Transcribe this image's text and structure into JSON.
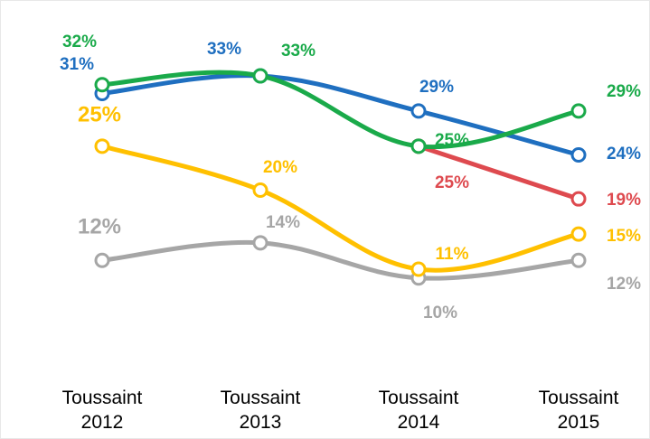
{
  "chart_data": {
    "type": "line",
    "categories": [
      "Toussaint 2012",
      "Toussaint 2013",
      "Toussaint 2014",
      "Toussaint 2015"
    ],
    "series": [
      {
        "name": "Gray",
        "color": "#a6a6a6",
        "values": [
          12,
          14,
          10,
          12
        ],
        "value_labels": [
          "12%",
          "14%",
          "10%",
          "12%"
        ]
      },
      {
        "name": "Yellow",
        "color": "#ffc000",
        "values": [
          25,
          20,
          11,
          15
        ],
        "value_labels": [
          "25%",
          "20%",
          "11%",
          "15%"
        ]
      },
      {
        "name": "Red",
        "color": "#de4a4f",
        "values": [
          null,
          null,
          25,
          19
        ],
        "value_labels": [
          null,
          null,
          "25%",
          "19%"
        ]
      },
      {
        "name": "Blue",
        "color": "#1f6fc0",
        "values": [
          31,
          33,
          29,
          24
        ],
        "value_labels": [
          "31%",
          "33%",
          "29%",
          "24%"
        ]
      },
      {
        "name": "Green",
        "color": "#1aaa4a",
        "values": [
          32,
          33,
          25,
          29
        ],
        "value_labels": [
          "32%",
          "33%",
          "25%",
          "29%"
        ]
      }
    ]
  }
}
